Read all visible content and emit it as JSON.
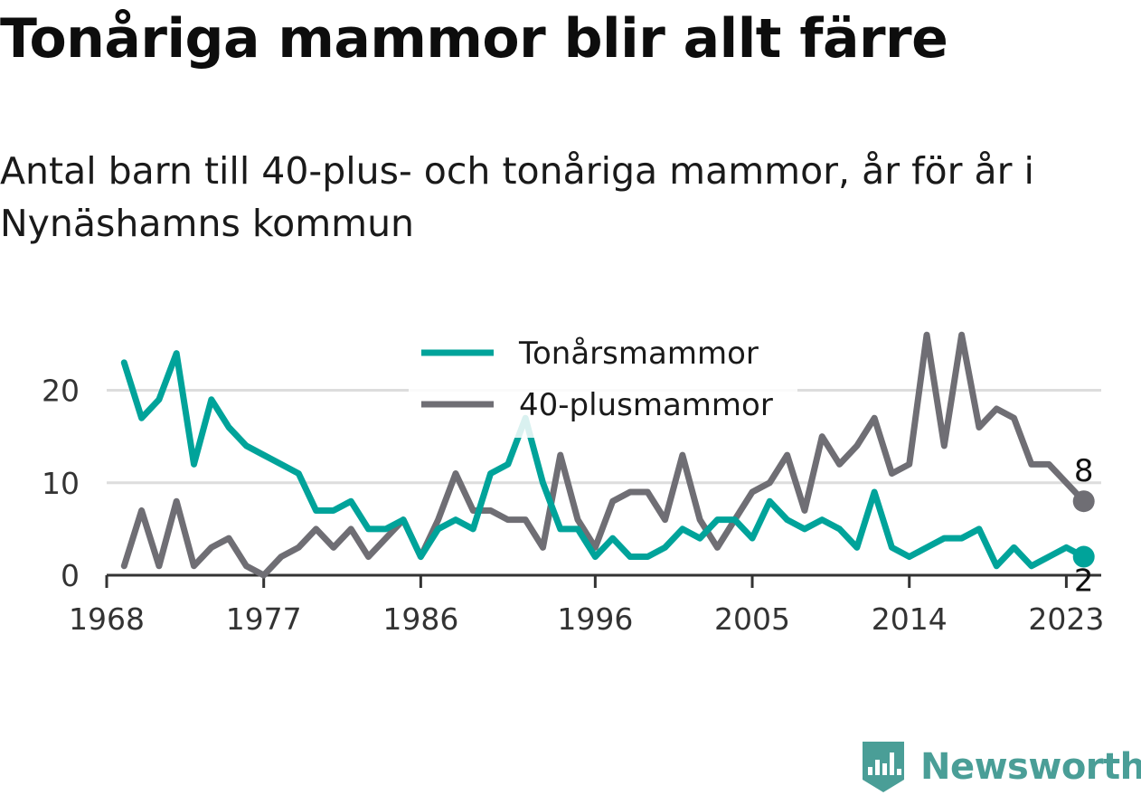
{
  "title": "Tonåriga mammor blir allt färre",
  "subtitle": "Antal barn till 40-plus- och tonåriga mammor, år för år i Nynäshamns kommun",
  "brand": "Newsworthy",
  "colors": {
    "teen": "#00a39a",
    "plus40": "#6f6e74",
    "brand": "#4a9e97",
    "grid": "#dddddd",
    "axis": "#333333"
  },
  "chart_data": {
    "type": "line",
    "x": [
      1969,
      1970,
      1971,
      1972,
      1973,
      1974,
      1975,
      1976,
      1977,
      1978,
      1979,
      1980,
      1981,
      1982,
      1983,
      1984,
      1985,
      1986,
      1987,
      1988,
      1989,
      1990,
      1991,
      1992,
      1993,
      1994,
      1995,
      1996,
      1997,
      1998,
      1999,
      2000,
      2001,
      2002,
      2003,
      2004,
      2005,
      2006,
      2007,
      2008,
      2009,
      2010,
      2011,
      2012,
      2013,
      2014,
      2015,
      2016,
      2017,
      2018,
      2019,
      2020,
      2021,
      2022,
      2023,
      2024
    ],
    "x_ticks": [
      "1968",
      "1977",
      "1986",
      "1996",
      "2005",
      "2014",
      "2023"
    ],
    "x_tick_values": [
      1968,
      1977,
      1986,
      1996,
      2005,
      2014,
      2023
    ],
    "y_ticks": [
      "0",
      "10",
      "20"
    ],
    "y_tick_values": [
      0,
      10,
      20
    ],
    "xlim": [
      1968,
      2025
    ],
    "ylim": [
      0,
      27
    ],
    "grid": true,
    "legend_position": "top-center",
    "series": [
      {
        "name": "Tonårsmammor",
        "color": "#00a39a",
        "values": [
          23,
          17,
          19,
          24,
          12,
          19,
          16,
          14,
          13,
          12,
          11,
          7,
          7,
          8,
          5,
          5,
          6,
          2,
          5,
          6,
          5,
          11,
          12,
          17,
          10,
          5,
          5,
          2,
          4,
          2,
          2,
          3,
          5,
          4,
          6,
          6,
          4,
          8,
          6,
          5,
          6,
          5,
          3,
          9,
          3,
          2,
          3,
          4,
          4,
          5,
          1,
          3,
          1,
          2,
          3,
          2
        ],
        "end_label": "2"
      },
      {
        "name": "40-plusmammor",
        "color": "#6f6e74",
        "values": [
          1,
          7,
          1,
          8,
          1,
          3,
          4,
          1,
          0,
          2,
          3,
          5,
          3,
          5,
          2,
          4,
          6,
          2,
          6,
          11,
          7,
          7,
          6,
          6,
          3,
          13,
          6,
          3,
          8,
          9,
          9,
          6,
          13,
          6,
          3,
          6,
          9,
          10,
          13,
          7,
          15,
          12,
          14,
          17,
          11,
          12,
          26,
          14,
          26,
          16,
          18,
          17,
          12,
          12,
          10,
          8
        ],
        "end_label": "8"
      }
    ]
  }
}
